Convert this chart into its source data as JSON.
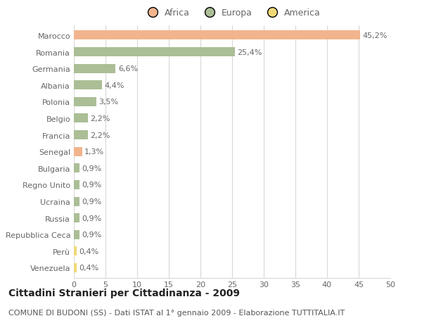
{
  "categories": [
    "Marocco",
    "Romania",
    "Germania",
    "Albania",
    "Polonia",
    "Belgio",
    "Francia",
    "Senegal",
    "Bulgaria",
    "Regno Unito",
    "Ucraina",
    "Russia",
    "Repubblica Ceca",
    "Perù",
    "Venezuela"
  ],
  "values": [
    45.2,
    25.4,
    6.6,
    4.4,
    3.5,
    2.2,
    2.2,
    1.3,
    0.9,
    0.9,
    0.9,
    0.9,
    0.9,
    0.4,
    0.4
  ],
  "labels": [
    "45,2%",
    "25,4%",
    "6,6%",
    "4,4%",
    "3,5%",
    "2,2%",
    "2,2%",
    "1,3%",
    "0,9%",
    "0,9%",
    "0,9%",
    "0,9%",
    "0,9%",
    "0,4%",
    "0,4%"
  ],
  "continent": [
    "Africa",
    "Europa",
    "Europa",
    "Europa",
    "Europa",
    "Europa",
    "Europa",
    "Africa",
    "Europa",
    "Europa",
    "Europa",
    "Europa",
    "Europa",
    "America",
    "America"
  ],
  "colors": {
    "Africa": "#F2B48C",
    "Europa": "#ABBE96",
    "America": "#F0D878"
  },
  "legend": [
    "Africa",
    "Europa",
    "America"
  ],
  "legend_colors": [
    "#F2B48C",
    "#ABBE96",
    "#F0D878"
  ],
  "title": "Cittadini Stranieri per Cittadinanza - 2009",
  "subtitle": "COMUNE DI BUDONI (SS) - Dati ISTAT al 1° gennaio 2009 - Elaborazione TUTTITALIA.IT",
  "xlim": [
    0,
    50
  ],
  "xticks": [
    0,
    5,
    10,
    15,
    20,
    25,
    30,
    35,
    40,
    45,
    50
  ],
  "background_color": "#ffffff",
  "grid_color": "#d8d8d8",
  "bar_height": 0.55,
  "label_fontsize": 8,
  "tick_fontsize": 8,
  "title_fontsize": 10,
  "subtitle_fontsize": 8,
  "label_color": "#666666",
  "tick_color": "#666666"
}
